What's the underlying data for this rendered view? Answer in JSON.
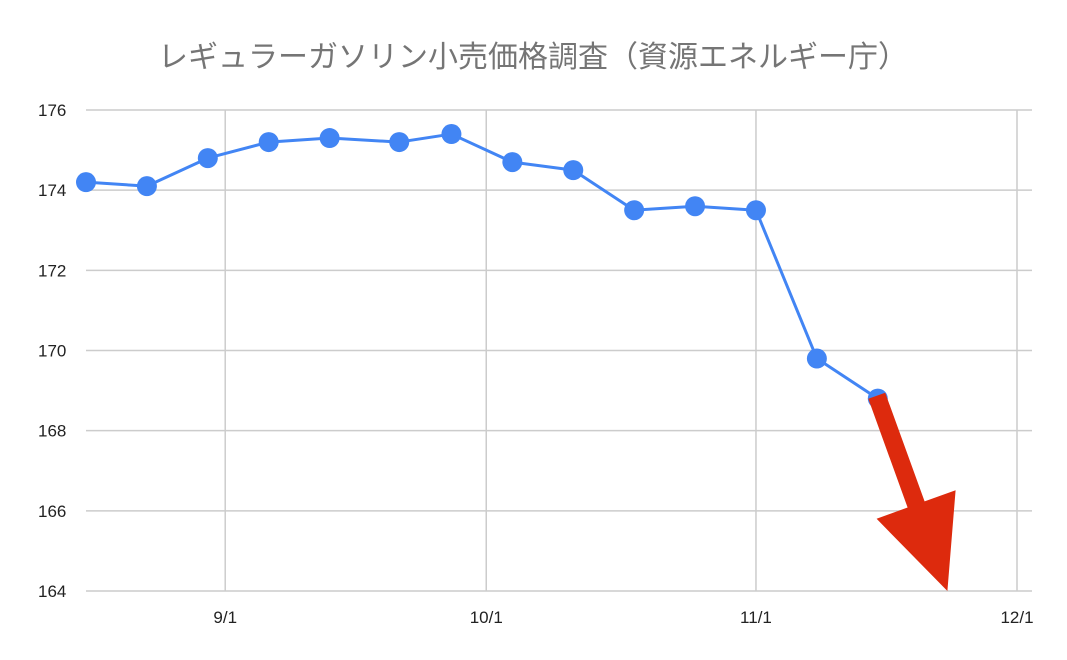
{
  "chart_data": {
    "type": "line",
    "title": "レギュラーガソリン小売価格調査（資源エネルギー庁）",
    "xlabel": "",
    "ylabel": "",
    "x_axis": {
      "type": "date",
      "range": [
        "2021-08-16",
        "2021-12-01"
      ],
      "ticks": [
        {
          "date": "2021-09-01",
          "label": "9/1"
        },
        {
          "date": "2021-10-01",
          "label": "10/1"
        },
        {
          "date": "2021-11-01",
          "label": "11/1"
        },
        {
          "date": "2021-12-01",
          "label": "12/1"
        }
      ]
    },
    "ylim": [
      164,
      176
    ],
    "yticks": [
      164,
      166,
      168,
      170,
      172,
      174,
      176
    ],
    "grid": true,
    "legend": "none",
    "series": [
      {
        "color": "#4285f4",
        "points": [
          {
            "x": "2021-08-16",
            "y": 174.2
          },
          {
            "x": "2021-08-23",
            "y": 174.1
          },
          {
            "x": "2021-08-30",
            "y": 174.8
          },
          {
            "x": "2021-09-06",
            "y": 175.2
          },
          {
            "x": "2021-09-13",
            "y": 175.3
          },
          {
            "x": "2021-09-21",
            "y": 175.2
          },
          {
            "x": "2021-09-27",
            "y": 175.4
          },
          {
            "x": "2021-10-04",
            "y": 174.7
          },
          {
            "x": "2021-10-11",
            "y": 174.5
          },
          {
            "x": "2021-10-18",
            "y": 173.5
          },
          {
            "x": "2021-10-25",
            "y": 173.6
          },
          {
            "x": "2021-11-01",
            "y": 173.5
          },
          {
            "x": "2021-11-08",
            "y": 169.8
          },
          {
            "x": "2021-11-15",
            "y": 168.8
          }
        ]
      }
    ],
    "annotations": [
      {
        "type": "arrow",
        "color": "#dd2a0d",
        "direction": "down",
        "from": {
          "x": "2021-11-15",
          "y": 168.8
        },
        "to": {
          "x": "2021-11-23",
          "y": 164
        }
      }
    ]
  }
}
